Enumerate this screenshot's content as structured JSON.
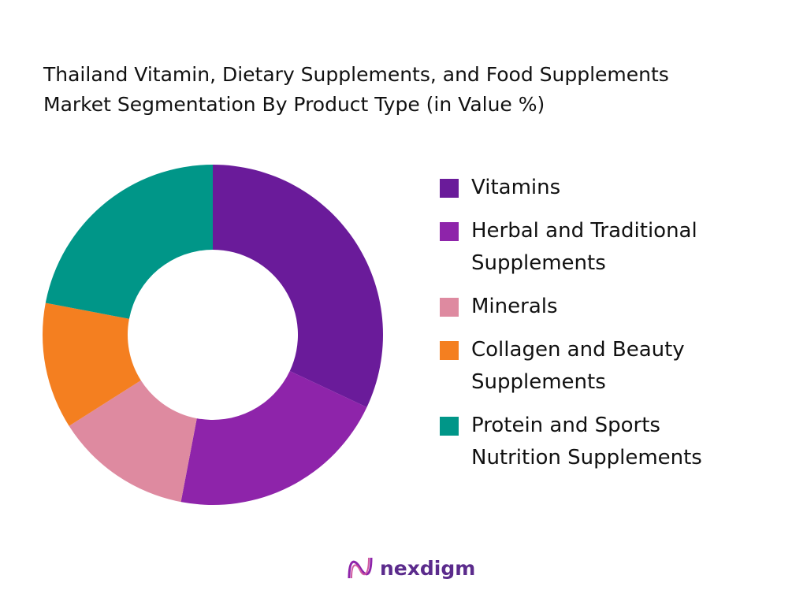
{
  "chart_data": {
    "type": "donut",
    "title": [
      "Thailand Vitamin, Dietary Supplements, and Food Supplements",
      "Market Segmentation By Product Type (in Value %)"
    ],
    "categories": [
      "Vitamins",
      "Herbal and Traditional Supplements",
      "Minerals",
      "Collagen and Beauty Supplements",
      "Protein and Sports Nutrition Supplements"
    ],
    "values": [
      32,
      21,
      13,
      12,
      22
    ],
    "colors": [
      "#6a1b9a",
      "#8e24aa",
      "#de8aa0",
      "#f47f20",
      "#009688"
    ],
    "legend": "right"
  },
  "logo": "nexdigm"
}
